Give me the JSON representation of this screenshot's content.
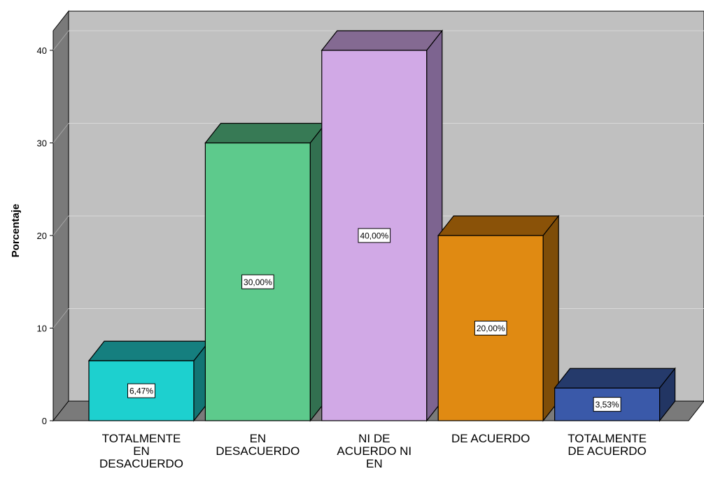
{
  "chart_data": {
    "type": "bar",
    "ylabel": "Porcentaje",
    "ylim": [
      0,
      40
    ],
    "yticks": [
      "0",
      "10",
      "20",
      "30",
      "40"
    ],
    "grid": true,
    "categories": [
      [
        "TOTALMENTE",
        "EN",
        "DESACUERDO"
      ],
      [
        "EN",
        "DESACUERDO"
      ],
      [
        "NI DE",
        "ACUERDO NI",
        "EN"
      ],
      [
        "DE ACUERDO"
      ],
      [
        "TOTALMENTE",
        "DE ACUERDO"
      ]
    ],
    "values": [
      6.47,
      30.0,
      40.0,
      20.0,
      3.53
    ],
    "data_labels": [
      "6,47%",
      "30,00%",
      "40,00%",
      "20,00%",
      "3,53%"
    ],
    "colors": [
      {
        "front": "#1dd0cf",
        "top": "#157f7f",
        "side": "#127474"
      },
      {
        "front": "#5dca8c",
        "top": "#377a55",
        "side": "#327050"
      },
      {
        "front": "#d1a9e6",
        "top": "#846a92",
        "side": "#7d6490"
      },
      {
        "front": "#e08a12",
        "top": "#8a5208",
        "side": "#7e4d08"
      },
      {
        "front": "#3a59a9",
        "top": "#253a6b",
        "side": "#223563"
      }
    ],
    "background": {
      "wall": "#c0c0c0",
      "side_wall": "#7a7a7a",
      "floor": "#7a7a7a",
      "gridline": "#d8d8d8"
    }
  }
}
